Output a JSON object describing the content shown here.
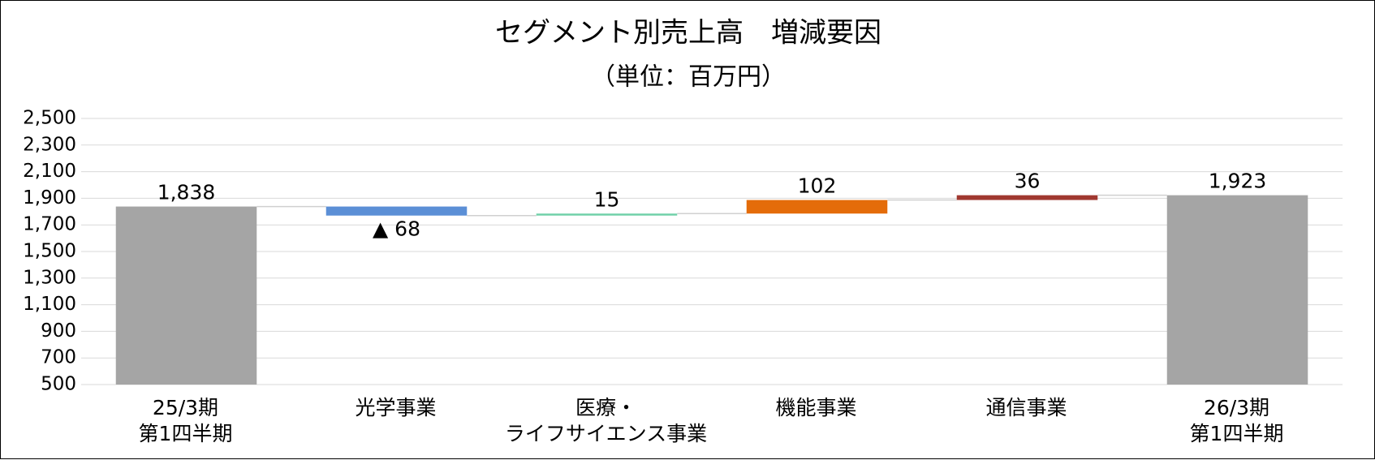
{
  "chart_data": {
    "type": "waterfall",
    "title": "セグメント別売上高　増減要因",
    "subtitle": "（単位：百万円）",
    "categories": [
      "25/3期\n第1四半期",
      "光学事業",
      "医療・\nライフサイエンス事業",
      "機能事業",
      "通信事業",
      "26/3期\n第1四半期"
    ],
    "values": [
      1838,
      -68,
      15,
      102,
      36,
      1923
    ],
    "value_labels": [
      "1,838",
      "▲ 68",
      "15",
      "102",
      "36",
      "1,923"
    ],
    "colors": [
      "#a5a5a5",
      "#5b8fd6",
      "#6fd0a8",
      "#e46c0a",
      "#a03830",
      "#a5a5a5"
    ],
    "ylim": [
      500,
      2500
    ],
    "yticks": [
      500,
      700,
      900,
      {
        "value": 1100,
        "label": "1,100"
      },
      {
        "value": 1300,
        "label": "1,300"
      },
      {
        "value": 1500,
        "label": "1,500"
      },
      {
        "value": 1700,
        "label": "1,700"
      },
      {
        "value": 1900,
        "label": "1,900"
      },
      {
        "value": 2100,
        "label": "2,100"
      },
      {
        "value": 2300,
        "label": "2,300"
      },
      {
        "value": 2500,
        "label": "2,500"
      }
    ],
    "grid": true
  }
}
